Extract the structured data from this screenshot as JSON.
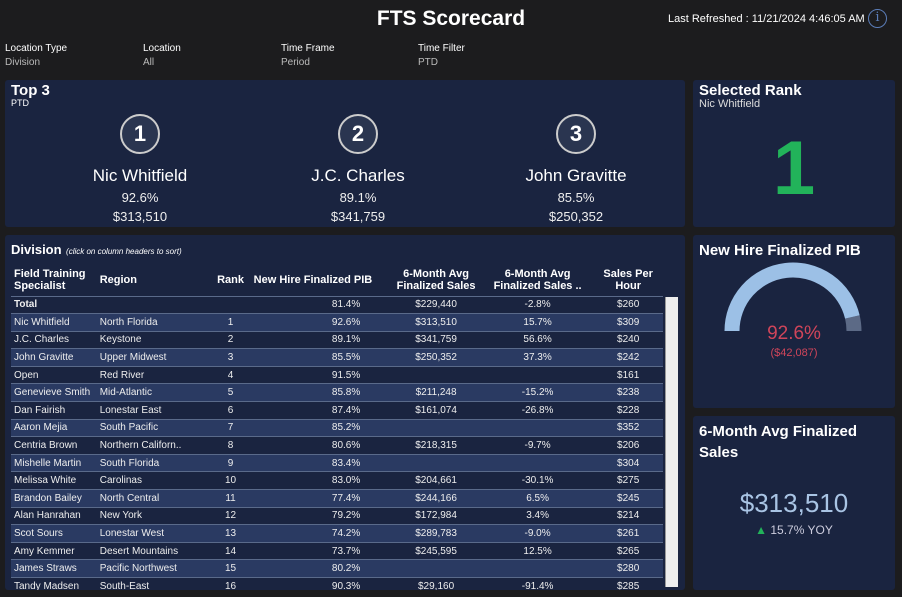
{
  "header": {
    "title": "FTS Scorecard",
    "last_refreshed": "Last Refreshed : 11/21/2024 4:46:05 AM",
    "info_icon": "i"
  },
  "filters": [
    {
      "label": "Location Type",
      "value": "Division"
    },
    {
      "label": "Location",
      "value": "All"
    },
    {
      "label": "Time Frame",
      "value": "Period"
    },
    {
      "label": "Time Filter",
      "value": "PTD"
    }
  ],
  "top3": {
    "title": "Top 3",
    "subtitle": "PTD",
    "items": [
      {
        "rank": "1",
        "name": "Nic Whitfield",
        "pct": "92.6%",
        "sales": "$313,510"
      },
      {
        "rank": "2",
        "name": "J.C. Charles",
        "pct": "89.1%",
        "sales": "$341,759"
      },
      {
        "rank": "3",
        "name": "John Gravitte",
        "pct": "85.5%",
        "sales": "$250,352"
      }
    ]
  },
  "selected_rank": {
    "title": "Selected Rank",
    "name": "Nic Whitfield",
    "rank": "1"
  },
  "division": {
    "title": "Division",
    "hint": "(click on column headers to sort)",
    "columns": [
      "Field Training Specialist",
      "Region",
      "Rank",
      "New Hire Finalized PIB",
      "6-Month Avg Finalized Sales",
      "6-Month Avg Finalized Sales ..",
      "Sales Per Hour"
    ],
    "rows": [
      [
        "Total",
        "",
        "",
        "81.4%",
        "$229,440",
        "-2.8%",
        "$260"
      ],
      [
        "Nic Whitfield",
        "North Florida",
        "1",
        "92.6%",
        "$313,510",
        "15.7%",
        "$309"
      ],
      [
        "J.C. Charles",
        "Keystone",
        "2",
        "89.1%",
        "$341,759",
        "56.6%",
        "$240"
      ],
      [
        "John Gravitte",
        "Upper Midwest",
        "3",
        "85.5%",
        "$250,352",
        "37.3%",
        "$242"
      ],
      [
        "Open",
        "Red River",
        "4",
        "91.5%",
        "",
        "",
        "$161"
      ],
      [
        "Genevieve Smith",
        "Mid-Atlantic",
        "5",
        "85.8%",
        "$211,248",
        "-15.2%",
        "$238"
      ],
      [
        "Dan Fairish",
        "Lonestar East",
        "6",
        "87.4%",
        "$161,074",
        "-26.8%",
        "$228"
      ],
      [
        "Aaron Mejia",
        "South Pacific",
        "7",
        "85.2%",
        "",
        "",
        "$352"
      ],
      [
        "Centria Brown",
        "Northern Californ..",
        "8",
        "80.6%",
        "$218,315",
        "-9.7%",
        "$206"
      ],
      [
        "Mishelle Martin",
        "South Florida",
        "9",
        "83.4%",
        "",
        "",
        "$304"
      ],
      [
        "Melissa White",
        "Carolinas",
        "10",
        "83.0%",
        "$204,661",
        "-30.1%",
        "$275"
      ],
      [
        "Brandon Bailey",
        "North Central",
        "11",
        "77.4%",
        "$244,166",
        "6.5%",
        "$245"
      ],
      [
        "Alan Hanrahan",
        "New York",
        "12",
        "79.2%",
        "$172,984",
        "3.4%",
        "$214"
      ],
      [
        "Scot Sours",
        "Lonestar West",
        "13",
        "74.2%",
        "$289,783",
        "-9.0%",
        "$261"
      ],
      [
        "Amy Kemmer",
        "Desert Mountains",
        "14",
        "73.7%",
        "$245,595",
        "12.5%",
        "$265"
      ],
      [
        "James Straws",
        "Pacific Northwest",
        "15",
        "80.2%",
        "",
        "",
        "$280"
      ],
      [
        "Tandy Madsen",
        "South-East",
        "16",
        "90.3%",
        "$29,160",
        "-91.4%",
        "$285"
      ]
    ]
  },
  "gauge": {
    "title": "New Hire Finalized PIB",
    "value": "92.6%",
    "fraction": 0.926,
    "sub": "($42,087)",
    "fill_color": "#9cc0e6",
    "rest_color": "#5c6a86",
    "text_color": "#d0455a"
  },
  "sales_card": {
    "title": "6-Month Avg Finalized Sales",
    "value": "$313,510",
    "yoy": "15.7% YOY",
    "up_color": "#22b35a"
  }
}
